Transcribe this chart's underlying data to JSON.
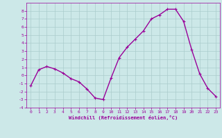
{
  "x": [
    0,
    1,
    2,
    3,
    4,
    5,
    6,
    7,
    8,
    9,
    10,
    11,
    12,
    13,
    14,
    15,
    16,
    17,
    18,
    19,
    20,
    21,
    22,
    23
  ],
  "y": [
    -1.3,
    0.7,
    1.1,
    0.8,
    0.3,
    -0.4,
    -0.8,
    -1.7,
    -2.8,
    -3.0,
    -0.3,
    2.2,
    3.5,
    4.5,
    5.5,
    7.0,
    7.5,
    8.2,
    8.2,
    6.7,
    3.2,
    0.2,
    -1.6,
    -2.6
  ],
  "line_color": "#990099",
  "marker": "+",
  "marker_size": 3,
  "bg_color": "#cce8e8",
  "grid_color": "#aacccc",
  "xlabel": "Windchill (Refroidissement éolien,°C)",
  "xlabel_color": "#990099",
  "tick_color": "#990099",
  "ylim": [
    -4,
    9
  ],
  "xlim": [
    -0.5,
    23.5
  ],
  "yticks": [
    -4,
    -3,
    -2,
    -1,
    0,
    1,
    2,
    3,
    4,
    5,
    6,
    7,
    8
  ],
  "xticks": [
    0,
    1,
    2,
    3,
    4,
    5,
    6,
    7,
    8,
    9,
    10,
    11,
    12,
    13,
    14,
    15,
    16,
    17,
    18,
    19,
    20,
    21,
    22,
    23
  ]
}
